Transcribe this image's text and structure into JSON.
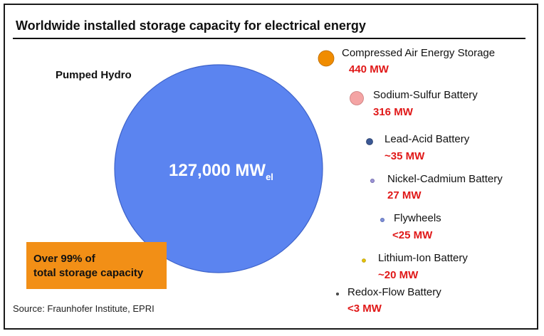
{
  "chart_data": {
    "type": "bubble",
    "title": "Worldwide installed storage capacity for electrical energy",
    "unit": "MW",
    "series": [
      {
        "name": "Pumped Hydro",
        "value": 127000,
        "value_label": "127,000 MW",
        "value_label_sub": "el",
        "color": "#5b84f0",
        "stroke": "#3d62c9"
      },
      {
        "name": "Compressed Air Energy Storage",
        "value": 440,
        "value_label": "440 MW",
        "color": "#f08c00",
        "stroke": "#b96a00"
      },
      {
        "name": "Sodium-Sulfur Battery",
        "value": 316,
        "value_label": "316 MW",
        "color": "#f4a4a4",
        "stroke": "#c97a7a"
      },
      {
        "name": "Lead-Acid Battery",
        "value": 35,
        "value_label": "~35 MW",
        "color": "#3b5894",
        "stroke": "#2a3f6b"
      },
      {
        "name": "Nickel-Cadmium Battery",
        "value": 27,
        "value_label": "27 MW",
        "color": "#9b93d6",
        "stroke": "#6e67a8"
      },
      {
        "name": "Flywheels",
        "value": 25,
        "value_label": "<25 MW",
        "color": "#7d8fd8",
        "stroke": "#5a6bb0"
      },
      {
        "name": "Lithium-Ion Battery",
        "value": 20,
        "value_label": "~20 MW",
        "color": "#e8c400",
        "stroke": "#b09400"
      },
      {
        "name": "Redox-Flow Battery",
        "value": 3,
        "value_label": "<3 MW",
        "color": "#555555",
        "stroke": "#333333"
      }
    ],
    "annotation": "Over 99% of total storage capacity",
    "source": "Source: Fraunhofer Institute, EPRI"
  }
}
